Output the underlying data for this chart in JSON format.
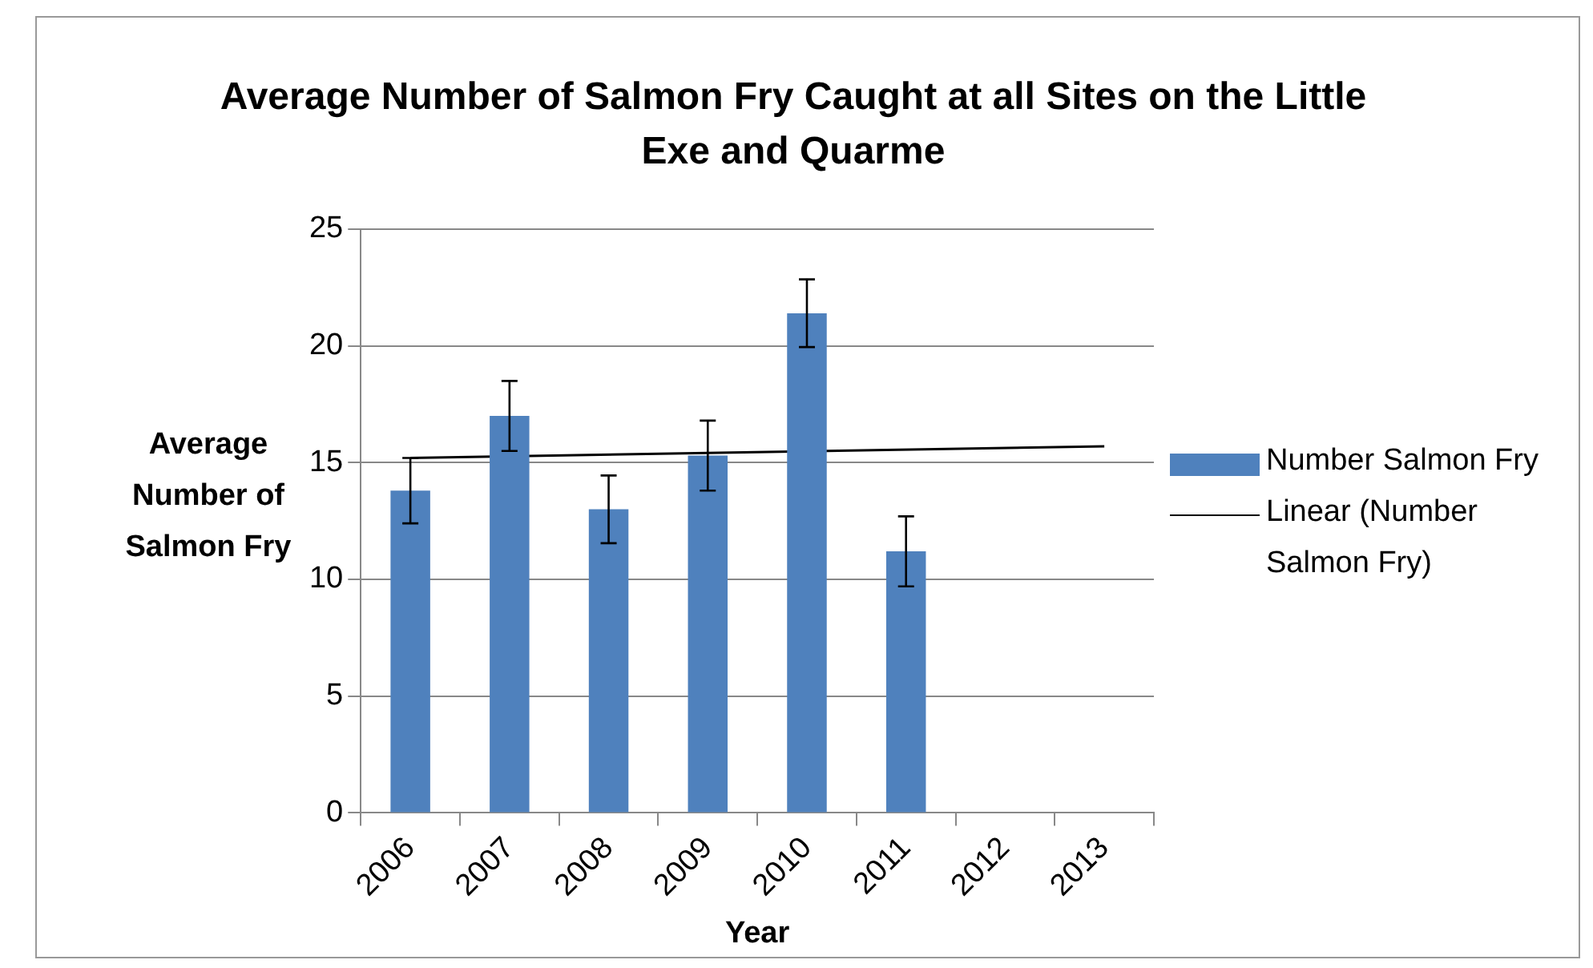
{
  "chart_data": {
    "type": "bar",
    "title": "Average Number of Salmon Fry Caught at all Sites on the Little Exe and Quarme",
    "xlabel": "Year",
    "ylabel": "Average Number of Salmon Fry",
    "categories": [
      "2006",
      "2007",
      "2008",
      "2009",
      "2010",
      "2011",
      "2012",
      "2013"
    ],
    "series": [
      {
        "name": "Number Salmon Fry",
        "color": "#4f81bd",
        "values": [
          13.8,
          17.0,
          13.0,
          15.3,
          21.4,
          11.2,
          null,
          null
        ],
        "errors": [
          1.4,
          1.5,
          1.45,
          1.5,
          1.45,
          1.5,
          null,
          null
        ]
      },
      {
        "name": "Linear (Number Salmon Fry)",
        "type": "line",
        "color": "#000000",
        "values": [
          15.2,
          null,
          null,
          null,
          null,
          null,
          null,
          15.7
        ],
        "marker": "none"
      }
    ],
    "ylim": [
      0,
      25
    ],
    "yticks": [
      0,
      5,
      10,
      15,
      20,
      25
    ],
    "grid": "y",
    "legend": "right"
  }
}
